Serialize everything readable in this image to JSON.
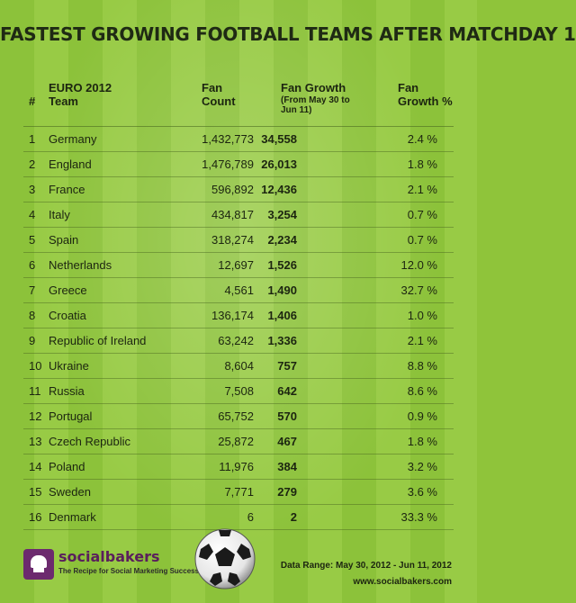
{
  "title": "FASTEST GROWING FOOTBALL TEAMS AFTER MATCHDAY 1",
  "chart_data": {
    "type": "table",
    "title": "FASTEST GROWING FOOTBALL TEAMS AFTER MATCHDAY 1",
    "columns": {
      "rank": "#",
      "team": "EURO 2012 Team",
      "fans": "Fan Count",
      "growth": "Fan Growth",
      "growth_sub": "(From May 30 to Jun 11)",
      "pct": "Fan Growth %"
    },
    "rows": [
      {
        "rank": "1",
        "team": "Germany",
        "fans": "1,432,773",
        "growth": "34,558",
        "pct": "2.4 %"
      },
      {
        "rank": "2",
        "team": "England",
        "fans": "1,476,789",
        "growth": "26,013",
        "pct": "1.8 %"
      },
      {
        "rank": "3",
        "team": "France",
        "fans": "596,892",
        "growth": "12,436",
        "pct": "2.1 %"
      },
      {
        "rank": "4",
        "team": "Italy",
        "fans": "434,817",
        "growth": "3,254",
        "pct": "0.7 %"
      },
      {
        "rank": "5",
        "team": "Spain",
        "fans": "318,274",
        "growth": "2,234",
        "pct": "0.7 %"
      },
      {
        "rank": "6",
        "team": "Netherlands",
        "fans": "12,697",
        "growth": "1,526",
        "pct": "12.0 %"
      },
      {
        "rank": "7",
        "team": "Greece",
        "fans": "4,561",
        "growth": "1,490",
        "pct": "32.7 %"
      },
      {
        "rank": "8",
        "team": "Croatia",
        "fans": "136,174",
        "growth": "1,406",
        "pct": "1.0 %"
      },
      {
        "rank": "9",
        "team": "Republic of Ireland",
        "fans": "63,242",
        "growth": "1,336",
        "pct": "2.1 %"
      },
      {
        "rank": "10",
        "team": "Ukraine",
        "fans": "8,604",
        "growth": "757",
        "pct": "8.8 %"
      },
      {
        "rank": "11",
        "team": "Russia",
        "fans": "7,508",
        "growth": "642",
        "pct": "8.6 %"
      },
      {
        "rank": "12",
        "team": "Portugal",
        "fans": "65,752",
        "growth": "570",
        "pct": "0.9 %"
      },
      {
        "rank": "13",
        "team": "Czech Republic",
        "fans": "25,872",
        "growth": "467",
        "pct": "1.8 %"
      },
      {
        "rank": "14",
        "team": "Poland",
        "fans": "11,976",
        "growth": "384",
        "pct": "3.2 %"
      },
      {
        "rank": "15",
        "team": "Sweden",
        "fans": "7,771",
        "growth": "279",
        "pct": "3.6 %"
      },
      {
        "rank": "16",
        "team": "Denmark",
        "fans": "6",
        "growth": "2",
        "pct": "33.3 %"
      }
    ]
  },
  "headers": {
    "rank": "#",
    "team_line1": "EURO 2012",
    "team_line2": "Team",
    "fans_line1": "Fan",
    "fans_line2": "Count",
    "growth_line1": "Fan Growth",
    "growth_line2": "(From May 30 to Jun 11)",
    "pct_line1": "Fan",
    "pct_line2": "Growth %"
  },
  "footer": {
    "brand": "socialbakers",
    "tagline": "The Recipe for Social Marketing Success",
    "data_range": "Data Range: May 30, 2012 - Jun 11, 2012",
    "website": "www.socialbakers.com"
  },
  "colors": {
    "brand_purple": "#6c2a6e",
    "field_green": "#8cc23a",
    "text_dark": "#1c2510"
  }
}
